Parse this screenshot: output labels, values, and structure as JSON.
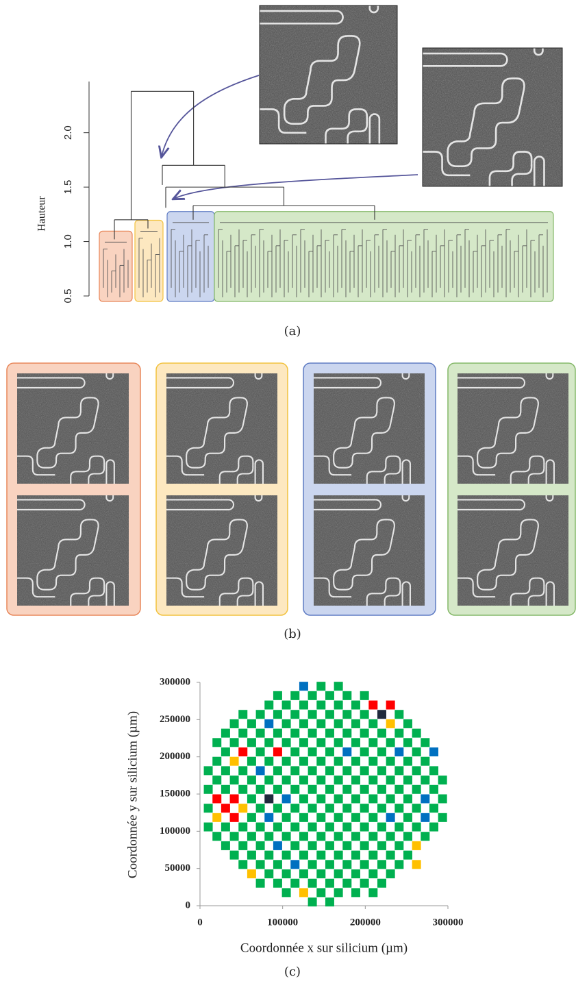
{
  "chart_data": [
    {
      "type": "dendrogram",
      "ylabel": "Hauteur",
      "ylim": [
        0.5,
        2.47
      ],
      "yticks": [
        0.5,
        {
          "value": 1,
          "label": "1.0"
        },
        1.5,
        {
          "value": 2,
          "label": "2.0"
        }
      ],
      "tree": {
        "height": 2.38,
        "children": [
          {
            "height": 1.2,
            "children": [
              {
                "height": 1.02,
                "color": "#f9d3c0",
                "border_color": "#e8875a"
              },
              {
                "height": 1.12,
                "color": "#fde8c0",
                "border_color": "#f2c23e"
              }
            ]
          },
          {
            "height": 1.7,
            "children": [
              {
                "height": 1.52
              },
              {
                "height": 1.5,
                "children": [
                  {
                    "height": 1.31
                  },
                  {
                    "height": 1.33,
                    "children": [
                      {
                        "height": 1.2,
                        "color": "#cbd6ef",
                        "border_color": "#5f7cc4"
                      },
                      {
                        "height": 1.2,
                        "color": "#d5e8c8",
                        "border_color": "#84b868"
                      }
                    ]
                  }
                ]
              }
            ]
          }
        ]
      }
    },
    {
      "type": "scatter",
      "xlabel": "Coordonnée x sur silicium  (µm)",
      "ylabel": "Coordonnée y sur silicium  (µm)",
      "xlim": [
        0,
        300000
      ],
      "xticks": [
        0,
        100000,
        200000,
        300000
      ],
      "ylim": [
        0,
        300000
      ],
      "yticks": [
        0,
        50000,
        100000,
        150000,
        200000,
        250000,
        300000
      ],
      "series": [
        {
          "color": "#00b050",
          "x": [
            136000,
            157000,
            104500,
            146500,
            167500,
            188500,
            209500,
            73000,
            94000,
            115000,
            136000,
            157000,
            178000,
            199000,
            220000,
            83500,
            104500,
            125500,
            146500,
            167500,
            188500,
            209500,
            230500,
            52000,
            73000,
            94000,
            136000,
            157000,
            178000,
            199000,
            220000,
            241000,
            41500,
            62500,
            83500,
            104500,
            125500,
            146500,
            167500,
            188500,
            209500,
            230500,
            251500,
            31000,
            52000,
            73000,
            115000,
            136000,
            157000,
            178000,
            199000,
            220000,
            241000,
            20500,
            41500,
            62500,
            83500,
            104500,
            125500,
            146500,
            167500,
            188500,
            209500,
            230500,
            251500,
            272500,
            10000,
            31000,
            52000,
            73000,
            94000,
            115000,
            136000,
            157000,
            178000,
            199000,
            220000,
            241000,
            262000,
            283000,
            62500,
            104500,
            125500,
            146500,
            167500,
            188500,
            209500,
            251500,
            293500,
            10000,
            73000,
            94000,
            115000,
            136000,
            157000,
            178000,
            199000,
            220000,
            241000,
            262000,
            283000,
            62500,
            125500,
            146500,
            167500,
            188500,
            209500,
            230500,
            251500,
            293500,
            10000,
            31000,
            52000,
            73000,
            94000,
            115000,
            136000,
            157000,
            178000,
            199000,
            220000,
            241000,
            262000,
            283000,
            20500,
            41500,
            62500,
            83500,
            104500,
            125500,
            146500,
            167500,
            188500,
            209500,
            230500,
            251500,
            272500,
            293500,
            10000,
            31000,
            52000,
            94000,
            115000,
            136000,
            157000,
            178000,
            199000,
            220000,
            241000,
            262000,
            283000,
            20500,
            62500,
            83500,
            104500,
            125500,
            146500,
            167500,
            188500,
            209500,
            230500,
            251500,
            272500,
            31000,
            73000,
            115000,
            136000,
            157000,
            199000,
            220000,
            262000,
            20500,
            41500,
            62500,
            83500,
            104500,
            125500,
            146500,
            167500,
            188500,
            209500,
            230500,
            251500,
            272500,
            31000,
            52000,
            73000,
            94000,
            115000,
            136000,
            157000,
            178000,
            199000,
            220000,
            241000,
            262000,
            41500,
            62500,
            104500,
            125500,
            146500,
            167500,
            188500,
            209500,
            251500,
            52000,
            73000,
            94000,
            115000,
            136000,
            157000,
            178000,
            199000,
            241000,
            83500,
            104500,
            125500,
            146500,
            167500,
            188500,
            94000,
            115000,
            136000,
            157000,
            178000,
            199000,
            146500,
            167500
          ],
          "y": [
            5000,
            5000,
            17600,
            17600,
            17600,
            17600,
            17600,
            30200,
            30200,
            30200,
            30200,
            30200,
            30200,
            30200,
            30200,
            42800,
            42800,
            42800,
            42800,
            42800,
            42800,
            42800,
            42800,
            55400,
            55400,
            55400,
            55400,
            55400,
            55400,
            55400,
            55400,
            55400,
            68000,
            68000,
            68000,
            68000,
            68000,
            68000,
            68000,
            68000,
            68000,
            68000,
            68000,
            80600,
            80600,
            80600,
            80600,
            80600,
            80600,
            80600,
            80600,
            80600,
            80600,
            93200,
            93200,
            93200,
            93200,
            93200,
            93200,
            93200,
            93200,
            93200,
            93200,
            93200,
            93200,
            93200,
            105800,
            105800,
            105800,
            105800,
            105800,
            105800,
            105800,
            105800,
            105800,
            105800,
            105800,
            105800,
            105800,
            105800,
            118400,
            118400,
            118400,
            118400,
            118400,
            118400,
            118400,
            118400,
            118400,
            131000,
            131000,
            131000,
            131000,
            131000,
            131000,
            131000,
            131000,
            131000,
            131000,
            131000,
            131000,
            143600,
            143600,
            143600,
            143600,
            143600,
            143600,
            143600,
            143600,
            143600,
            156200,
            156200,
            156200,
            156200,
            156200,
            156200,
            156200,
            156200,
            156200,
            156200,
            156200,
            156200,
            156200,
            156200,
            168800,
            168800,
            168800,
            168800,
            168800,
            168800,
            168800,
            168800,
            168800,
            168800,
            168800,
            168800,
            168800,
            168800,
            181400,
            181400,
            181400,
            181400,
            181400,
            181400,
            181400,
            181400,
            181400,
            181400,
            181400,
            181400,
            181400,
            194000,
            194000,
            194000,
            194000,
            194000,
            194000,
            194000,
            194000,
            194000,
            194000,
            194000,
            194000,
            206600,
            206600,
            206600,
            206600,
            206600,
            206600,
            206600,
            206600,
            219200,
            219200,
            219200,
            219200,
            219200,
            219200,
            219200,
            219200,
            219200,
            219200,
            219200,
            219200,
            219200,
            231800,
            231800,
            231800,
            231800,
            231800,
            231800,
            231800,
            231800,
            231800,
            231800,
            231800,
            231800,
            244400,
            244400,
            244400,
            244400,
            244400,
            244400,
            244400,
            244400,
            244400,
            257000,
            257000,
            257000,
            257000,
            257000,
            257000,
            257000,
            257000,
            257000,
            269600,
            269600,
            269600,
            269600,
            269600,
            269600,
            282200,
            282200,
            282200,
            282200,
            282200,
            282200,
            294800,
            294800
          ]
        },
        {
          "color": "#ff0000",
          "x": [
            209500,
            230500,
            52000,
            94000,
            20500,
            41500,
            31000,
            41500
          ],
          "y": [
            269600,
            269600,
            206600,
            206600,
            143600,
            143600,
            131000,
            118400
          ]
        },
        {
          "color": "#ffc000",
          "x": [
            230500,
            41500,
            52000,
            20500,
            262000,
            262000,
            62500,
            125500
          ],
          "y": [
            244400,
            194000,
            131000,
            118400,
            80600,
            55400,
            42800,
            17600
          ]
        },
        {
          "color": "#0070c0",
          "x": [
            125500,
            83500,
            178000,
            241000,
            283000,
            73000,
            104500,
            272500,
            83500,
            230500,
            272500,
            94000,
            115000
          ],
          "y": [
            294800,
            244400,
            206600,
            206600,
            206600,
            181400,
            143600,
            143600,
            118400,
            118400,
            118400,
            80600,
            55400
          ]
        },
        {
          "color": "#1f2a3c",
          "x": [
            220000,
            83500
          ],
          "y": [
            257000,
            143600
          ]
        }
      ]
    }
  ],
  "captions": [
    "(a)",
    "(b)",
    "(c)"
  ]
}
